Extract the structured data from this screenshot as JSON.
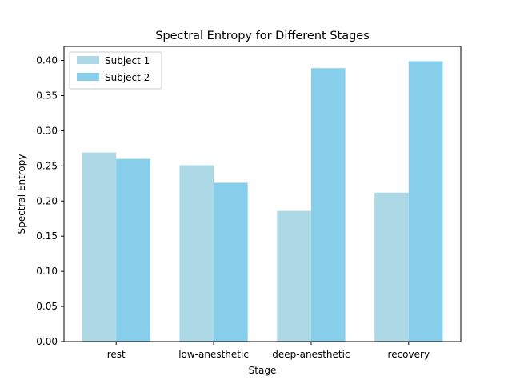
{
  "chart_data": {
    "type": "bar",
    "title": "Spectral Entropy for Different Stages",
    "xlabel": "Stage",
    "ylabel": "Spectral Entropy",
    "categories": [
      "rest",
      "low-anesthetic",
      "deep-anesthetic",
      "recovery"
    ],
    "series": [
      {
        "name": "Subject 1",
        "color": "#add8e6",
        "values": [
          0.269,
          0.251,
          0.186,
          0.212
        ]
      },
      {
        "name": "Subject 2",
        "color": "#87ceeb",
        "values": [
          0.26,
          0.226,
          0.389,
          0.399
        ]
      }
    ],
    "ylim": [
      0,
      0.42
    ],
    "yticks": [
      "0.00",
      "0.05",
      "0.10",
      "0.15",
      "0.20",
      "0.25",
      "0.30",
      "0.35",
      "0.40"
    ],
    "legend": "top-left",
    "grid": false
  }
}
